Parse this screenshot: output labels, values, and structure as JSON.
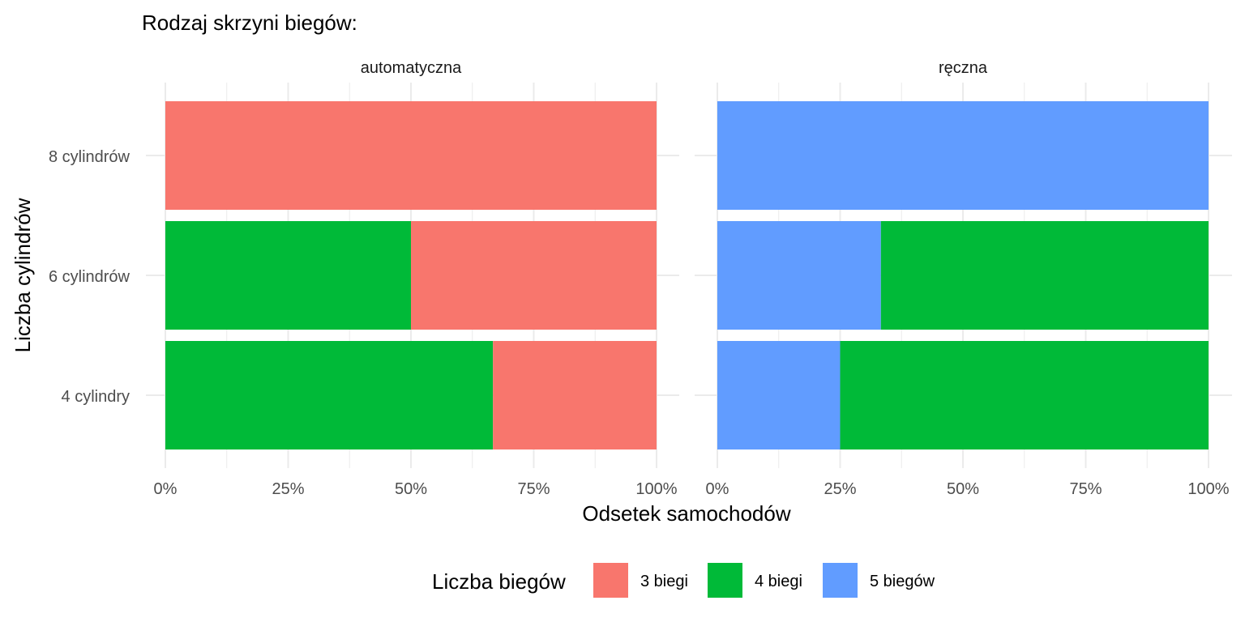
{
  "chart_data": {
    "type": "bar",
    "orientation": "horizontal",
    "stacked": "percent",
    "title": "Rodzaj skrzyni biegów:",
    "xlabel": "Odsetek samochodów",
    "ylabel": "Liczba cylindrów",
    "xlim": [
      0,
      100
    ],
    "x_ticks": [
      "0%",
      "25%",
      "50%",
      "75%",
      "100%"
    ],
    "grid": true,
    "categories": [
      "8 cylindrów",
      "6 cylindrów",
      "4 cylindry"
    ],
    "legend": {
      "title": "Liczba biegów",
      "position": "bottom",
      "entries": [
        {
          "label": "3 biegi",
          "color": "#F8766D"
        },
        {
          "label": "4 biegi",
          "color": "#00BA38"
        },
        {
          "label": "5 biegów",
          "color": "#619CFF"
        }
      ]
    },
    "facets": [
      {
        "label": "automatyczna",
        "rows": [
          {
            "category": "8 cylindrów",
            "segments": [
              {
                "series": "3 biegi",
                "value": 100
              }
            ]
          },
          {
            "category": "6 cylindrów",
            "segments": [
              {
                "series": "4 biegi",
                "value": 50
              },
              {
                "series": "3 biegi",
                "value": 50
              }
            ]
          },
          {
            "category": "4 cylindry",
            "segments": [
              {
                "series": "4 biegi",
                "value": 66.7
              },
              {
                "series": "3 biegi",
                "value": 33.3
              }
            ]
          }
        ]
      },
      {
        "label": "ręczna",
        "rows": [
          {
            "category": "8 cylindrów",
            "segments": [
              {
                "series": "5 biegów",
                "value": 100
              }
            ]
          },
          {
            "category": "6 cylindrów",
            "segments": [
              {
                "series": "5 biegów",
                "value": 33.3
              },
              {
                "series": "4 biegi",
                "value": 66.7
              }
            ]
          },
          {
            "category": "4 cylindry",
            "segments": [
              {
                "series": "5 biegów",
                "value": 25
              },
              {
                "series": "4 biegi",
                "value": 75
              }
            ]
          }
        ]
      }
    ]
  }
}
